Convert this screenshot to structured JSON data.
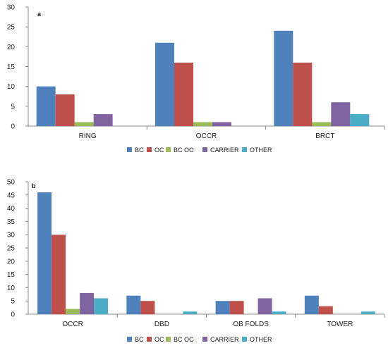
{
  "colors": {
    "BC": "#4F81BD",
    "OC": "#C0504D",
    "BC OC": "#9BBB59",
    "CARRIER": "#8064A2",
    "OTHER": "#4BACC6"
  },
  "chart_data": [
    {
      "type": "bar",
      "panel_label": "a",
      "categories": [
        "RING",
        "OCCR",
        "BRCT"
      ],
      "series": [
        {
          "name": "BC",
          "values": [
            10,
            21,
            24
          ]
        },
        {
          "name": "OC",
          "values": [
            8,
            16,
            16
          ]
        },
        {
          "name": "BC OC",
          "values": [
            1,
            1,
            1
          ]
        },
        {
          "name": "CARRIER",
          "values": [
            3,
            1,
            6
          ]
        },
        {
          "name": "OTHER",
          "values": [
            0,
            0,
            3
          ]
        }
      ],
      "ylim": [
        0,
        30
      ],
      "yticks": [
        0,
        5,
        10,
        15,
        20,
        25,
        30
      ],
      "legend": "bottom",
      "grid": false
    },
    {
      "type": "bar",
      "panel_label": "b",
      "categories": [
        "OCCR",
        "DBD",
        "OB FOLDS",
        "TOWER"
      ],
      "series": [
        {
          "name": "BC",
          "values": [
            46,
            7,
            5,
            7
          ]
        },
        {
          "name": "OC",
          "values": [
            30,
            5,
            5,
            3
          ]
        },
        {
          "name": "BC OC",
          "values": [
            2,
            0,
            0,
            0
          ]
        },
        {
          "name": "CARRIER",
          "values": [
            8,
            0,
            6,
            0
          ]
        },
        {
          "name": "OTHER",
          "values": [
            6,
            1,
            1,
            1
          ]
        }
      ],
      "ylim": [
        0,
        50
      ],
      "yticks": [
        0,
        5,
        10,
        15,
        20,
        25,
        30,
        35,
        40,
        45,
        50
      ],
      "legend": "bottom",
      "grid": false
    }
  ]
}
